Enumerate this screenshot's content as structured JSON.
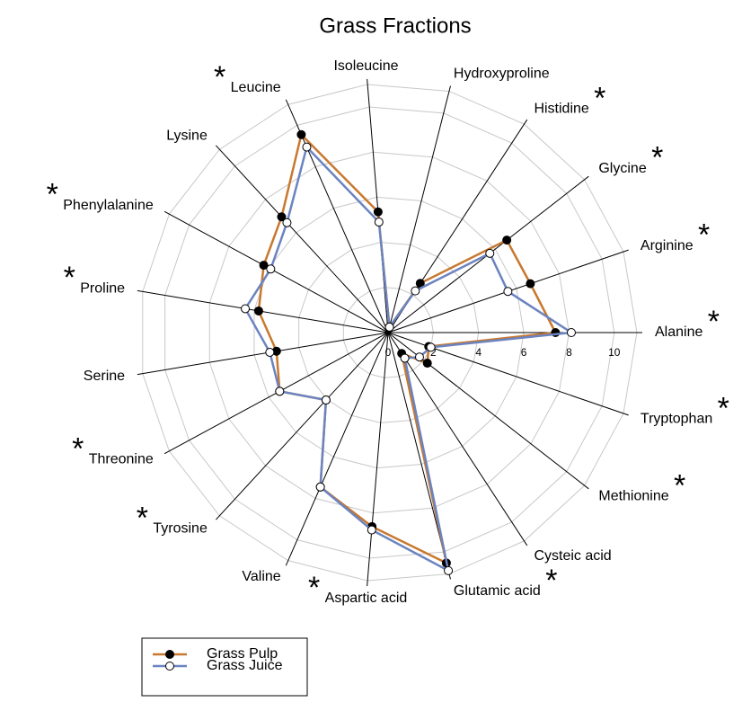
{
  "chart_data": {
    "type": "radar",
    "title": "Grass Fractions",
    "categories": [
      "Alanine",
      "Arginine",
      "Glycine",
      "Histidine",
      "Hydroxyproline",
      "Isoleucine",
      "Leucine",
      "Lysine",
      "Phenylalanine",
      "Proline",
      "Serine",
      "Threonine",
      "Tyrosine",
      "Valine",
      "Aspartic acid",
      "Glutamic acid",
      "Cysteic acid",
      "Methionine",
      "Tryptophan"
    ],
    "significance": [
      "*",
      "*",
      "*",
      "*",
      null,
      null,
      "*",
      null,
      "*",
      "*",
      null,
      "*",
      "*",
      null,
      "*",
      "*",
      null,
      "*",
      "*"
    ],
    "series": [
      {
        "name": "Grass Pulp",
        "color": "#c8782f",
        "marker_color": "#000000",
        "values": [
          7.4,
          6.65,
          6.65,
          2.6,
          0.25,
          5.35,
          9.55,
          6.95,
          6.25,
          5.8,
          5.0,
          5.45,
          4.05,
          7.45,
          8.6,
          10.5,
          1.1,
          2.2,
          1.9
        ]
      },
      {
        "name": "Grass Juice",
        "color": "#6b84c0",
        "marker_color": "#ffffff",
        "values": [
          8.1,
          5.6,
          5.7,
          2.2,
          0.25,
          4.9,
          8.95,
          6.6,
          5.9,
          6.4,
          5.3,
          5.45,
          4.05,
          7.45,
          8.75,
          10.85,
          1.35,
          1.76,
          2.0
        ]
      }
    ],
    "ylim": [
      0,
      11
    ],
    "yticks": [
      0,
      2,
      4,
      6,
      8,
      10
    ],
    "grid": true
  }
}
